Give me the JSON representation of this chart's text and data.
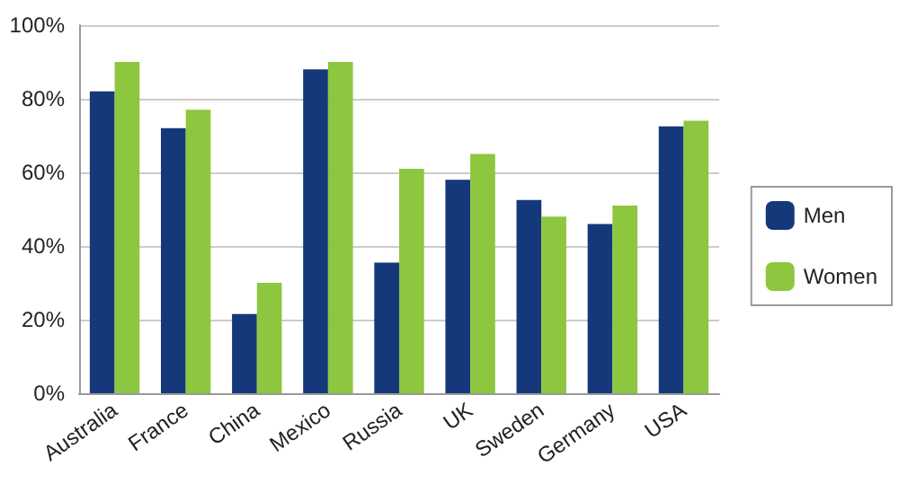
{
  "chart_data": {
    "type": "bar",
    "categories": [
      "Australia",
      "France",
      "China",
      "Mexico",
      "Russia",
      "UK",
      "Sweden",
      "Germany",
      "USA"
    ],
    "series": [
      {
        "name": "Men",
        "color": "#15387a",
        "values": [
          82,
          72,
          21.5,
          88,
          35.5,
          58,
          52.5,
          46,
          72.5
        ]
      },
      {
        "name": "Women",
        "color": "#8dc63f",
        "values": [
          90,
          77,
          30,
          90,
          61,
          65,
          48,
          51,
          74
        ]
      }
    ],
    "ylim": [
      0,
      100
    ],
    "yticks": [
      {
        "value": 0,
        "label": "0%"
      },
      {
        "value": 20,
        "label": "20%"
      },
      {
        "value": 40,
        "label": "40%"
      },
      {
        "value": 60,
        "label": "60%"
      },
      {
        "value": 80,
        "label": "80%"
      },
      {
        "value": 100,
        "label": "100%"
      }
    ],
    "grid": "y",
    "legend": "right"
  }
}
